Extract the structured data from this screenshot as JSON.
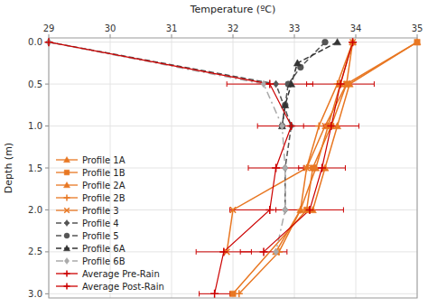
{
  "chart_data": {
    "type": "line",
    "xlabel": "Temperature (ºC)",
    "ylabel": "Depth (m)",
    "xlim": [
      29,
      35
    ],
    "ylim": [
      3.05,
      -0.05
    ],
    "xticks": [
      29,
      30,
      31,
      32,
      33,
      34,
      35
    ],
    "yticks": [
      {
        "value": 0,
        "label": "0.0"
      },
      0.5,
      {
        "value": 1,
        "label": "1.0"
      },
      1.5,
      {
        "value": 2,
        "label": "2.0"
      },
      2.5,
      {
        "value": 3,
        "label": "3.0"
      }
    ],
    "grid": true,
    "legend": "lower left",
    "series": [
      {
        "name": "Profile 1A",
        "color": "#E87722",
        "marker": "triangle",
        "line_style": "solid",
        "x": [
          35.0,
          33.9,
          33.7,
          33.5,
          33.3
        ],
        "values": [
          0,
          0.5,
          1.0,
          1.5,
          2.0
        ]
      },
      {
        "name": "Profile 1B",
        "color": "#E87722",
        "marker": "square",
        "line_style": "solid",
        "x": [
          35.0,
          33.85,
          33.6,
          33.3,
          33.2,
          32.0
        ],
        "values": [
          0,
          0.5,
          1.0,
          1.5,
          2.0,
          3.0
        ]
      },
      {
        "name": "Profile 2A",
        "color": "#E87722",
        "marker": "triangle",
        "line_style": "solid",
        "x": [
          33.95,
          33.75,
          33.55,
          33.35,
          33.1,
          32.7
        ],
        "values": [
          0,
          0.5,
          1.0,
          1.5,
          2.0,
          2.5
        ]
      },
      {
        "name": "Profile 2B",
        "color": "#E87722",
        "marker": "plus",
        "line_style": "solid",
        "x": [
          33.95,
          33.7,
          33.4,
          33.2,
          33.1,
          32.75,
          32.1
        ],
        "values": [
          0,
          0.5,
          1.0,
          1.5,
          2.0,
          2.5,
          3.0
        ]
      },
      {
        "name": "Profile 3",
        "color": "#E87722",
        "marker": "cross",
        "line_style": "solid",
        "x": [
          33.95,
          33.85,
          33.5,
          33.2,
          32.0,
          31.9
        ],
        "values": [
          0,
          0.5,
          1.0,
          1.5,
          2.0,
          2.5
        ]
      },
      {
        "name": "Profile 4",
        "color": "#555555",
        "marker": "diamond",
        "line_style": "dashed",
        "x": [
          29.0,
          32.7,
          32.95,
          32.85,
          32.85
        ],
        "values": [
          0,
          0.5,
          1.0,
          1.5,
          2.0
        ]
      },
      {
        "name": "Profile 5",
        "color": "#555555",
        "marker": "circle",
        "line_style": "dashed",
        "x": [
          33.5,
          33.1,
          32.9,
          32.85,
          32.8
        ],
        "values": [
          0,
          0.3,
          0.5,
          0.75,
          1.0
        ]
      },
      {
        "name": "Profile 6A",
        "color": "#333333",
        "marker": "triangle",
        "line_style": "dashed",
        "x": [
          33.7,
          33.05,
          32.95,
          32.85,
          32.8
        ],
        "values": [
          0,
          0.25,
          0.5,
          0.75,
          1.0
        ]
      },
      {
        "name": "Profile 6B",
        "color": "#aaaaaa",
        "marker": "diamond",
        "line_style": "dashdot",
        "x": [
          29.0,
          32.5,
          32.8,
          32.85,
          32.85,
          32.7
        ],
        "values": [
          0,
          0.5,
          1.0,
          1.5,
          2.0,
          2.5
        ]
      },
      {
        "name": "Average Pre-Rain",
        "color": "#cc0000",
        "marker": "plus",
        "line_style": "solid",
        "x": [
          29.0,
          32.6,
          32.95,
          32.7,
          32.6,
          31.85,
          31.7
        ],
        "values": [
          0,
          0.5,
          1.0,
          1.5,
          2.0,
          2.5,
          3.0
        ],
        "xerr": [
          0.0,
          0.7,
          0.55,
          0.45,
          0.65,
          0.45,
          0.25
        ]
      },
      {
        "name": "Average Post-Rain",
        "color": "#cc0000",
        "marker": "plus",
        "line_style": "solid",
        "x": [
          33.95,
          33.75,
          33.6,
          33.45,
          33.25,
          32.5
        ],
        "values": [
          0,
          0.5,
          1.0,
          1.5,
          2.0,
          2.5
        ],
        "xerr": [
          0.0,
          0.55,
          0.45,
          0.38,
          0.55,
          0.38
        ]
      }
    ]
  }
}
